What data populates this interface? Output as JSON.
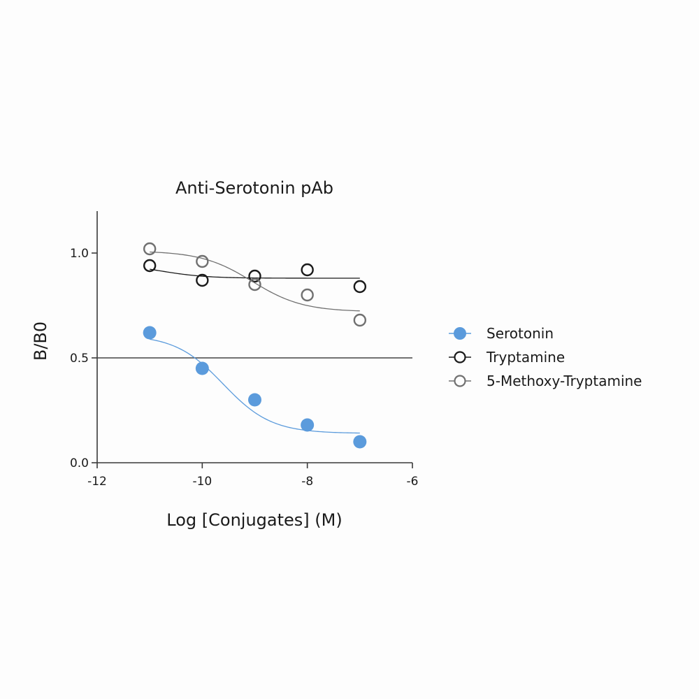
{
  "chart_data": {
    "type": "scatter",
    "title": "Anti-Serotonin pAb",
    "xlabel": "Log [Conjugates] (M)",
    "ylabel": "B/B0",
    "xlim": [
      -12,
      -6
    ],
    "ylim": [
      0,
      1.2
    ],
    "x_ticks": [
      -12,
      -10,
      -8,
      -6
    ],
    "x_tick_labels": [
      "-12",
      "-10",
      "-8",
      "-6"
    ],
    "y_ticks": [
      0,
      0.5,
      1.0
    ],
    "y_tick_labels": [
      "0.0",
      "0.5",
      "1.0"
    ],
    "reference_line_y": 0.5,
    "grid": false,
    "legend_position": "right",
    "series": [
      {
        "name": "Serotonin",
        "marker": "filled-circle",
        "color": "#5b9bdc",
        "x": [
          -11,
          -10,
          -9,
          -8,
          -7
        ],
        "y": [
          0.62,
          0.45,
          0.3,
          0.18,
          0.1
        ],
        "fit": {
          "top": 0.61,
          "bottom": 0.14,
          "logEC50": -9.6,
          "hill": -0.95
        }
      },
      {
        "name": "Tryptamine",
        "marker": "open-circle",
        "color": "#1a1a1a",
        "x": [
          -11,
          -10,
          -9,
          -8,
          -7
        ],
        "y": [
          0.94,
          0.87,
          0.89,
          0.92,
          0.84
        ],
        "fit": {
          "top": 0.95,
          "bottom": 0.88,
          "logEC50": -10.8,
          "hill": -1.0
        }
      },
      {
        "name": "5-Methoxy-Tryptamine",
        "marker": "open-circle",
        "color": "#707070",
        "x": [
          -11,
          -10,
          -9,
          -8,
          -7
        ],
        "y": [
          1.02,
          0.96,
          0.85,
          0.8,
          0.68
        ],
        "fit": {
          "top": 1.01,
          "bottom": 0.72,
          "logEC50": -9.05,
          "hill": -0.9
        }
      }
    ]
  }
}
